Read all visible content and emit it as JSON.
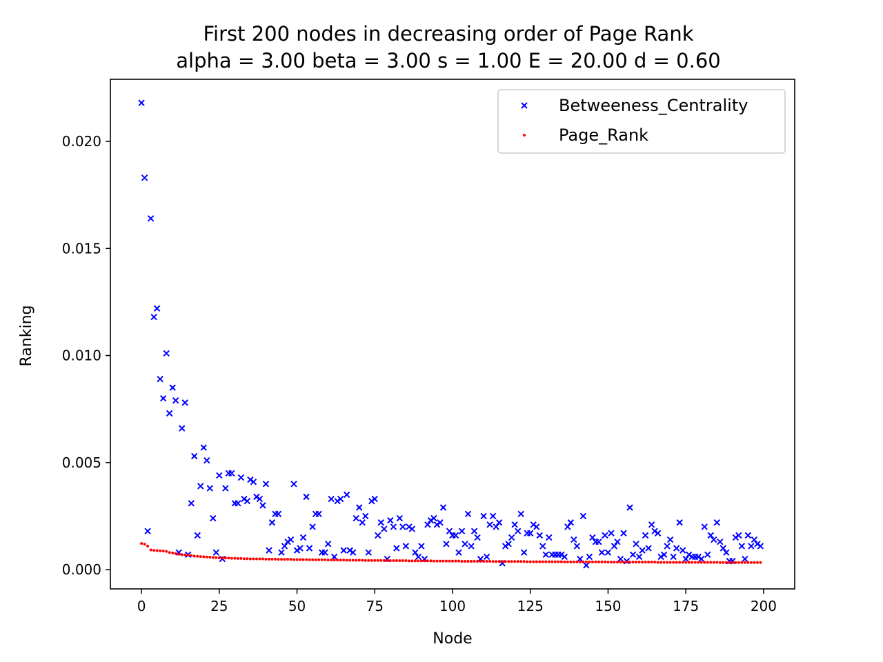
{
  "chart_data": {
    "type": "scatter",
    "title": "First 200 nodes in decreasing order of Page Rank",
    "subtitle": "alpha = 3.00 beta = 3.00 s = 1.00 E = 20.00 d = 0.60",
    "xlabel": "Node",
    "ylabel": "Ranking",
    "xlim": [
      -10,
      210
    ],
    "ylim": [
      -0.0009,
      0.0229
    ],
    "xticks": [
      0,
      25,
      50,
      75,
      100,
      125,
      150,
      175,
      200
    ],
    "xtick_labels": [
      "0",
      "25",
      "50",
      "75",
      "100",
      "125",
      "150",
      "175",
      "200"
    ],
    "yticks": [
      0.0,
      0.005,
      0.01,
      0.015,
      0.02
    ],
    "ytick_labels": [
      "0.000",
      "0.005",
      "0.010",
      "0.015",
      "0.020"
    ],
    "grid": false,
    "legend": "top-right",
    "series": [
      {
        "name": "Betweeness_Centrality",
        "marker": "x",
        "color": "#0000ff",
        "x": [
          0,
          1,
          2,
          3,
          4,
          5,
          6,
          7,
          8,
          9,
          10,
          11,
          12,
          13,
          14,
          15,
          16,
          17,
          18,
          19,
          20,
          21,
          22,
          23,
          24,
          25,
          26,
          27,
          28,
          29,
          30,
          31,
          32,
          33,
          34,
          35,
          36,
          37,
          38,
          39,
          40,
          41,
          42,
          43,
          44,
          45,
          46,
          47,
          48,
          49,
          50,
          51,
          52,
          53,
          54,
          55,
          56,
          57,
          58,
          59,
          60,
          61,
          62,
          63,
          64,
          65,
          66,
          67,
          68,
          69,
          70,
          71,
          72,
          73,
          74,
          75,
          76,
          77,
          78,
          79,
          80,
          81,
          82,
          83,
          84,
          85,
          86,
          87,
          88,
          89,
          90,
          91,
          92,
          93,
          94,
          95,
          96,
          97,
          98,
          99,
          100,
          101,
          102,
          103,
          104,
          105,
          106,
          107,
          108,
          109,
          110,
          111,
          112,
          113,
          114,
          115,
          116,
          117,
          118,
          119,
          120,
          121,
          122,
          123,
          124,
          125,
          126,
          127,
          128,
          129,
          130,
          131,
          132,
          133,
          134,
          135,
          136,
          137,
          138,
          139,
          140,
          141,
          142,
          143,
          144,
          145,
          146,
          147,
          148,
          149,
          150,
          151,
          152,
          153,
          154,
          155,
          156,
          157,
          158,
          159,
          160,
          161,
          162,
          163,
          164,
          165,
          166,
          167,
          168,
          169,
          170,
          171,
          172,
          173,
          174,
          175,
          176,
          177,
          178,
          179,
          180,
          181,
          182,
          183,
          184,
          185,
          186,
          187,
          188,
          189,
          190,
          191,
          192,
          193,
          194,
          195,
          196,
          197,
          198,
          199
        ],
        "y": [
          0.0218,
          0.0183,
          0.0018,
          0.0164,
          0.0118,
          0.0122,
          0.0089,
          0.008,
          0.0101,
          0.0073,
          0.0085,
          0.0079,
          0.0008,
          0.0066,
          0.0078,
          0.0007,
          0.0031,
          0.0053,
          0.0016,
          0.0039,
          0.0057,
          0.0051,
          0.0038,
          0.0024,
          0.0008,
          0.0044,
          0.0005,
          0.0038,
          0.0045,
          0.0045,
          0.0031,
          0.0031,
          0.0043,
          0.0033,
          0.0032,
          0.0042,
          0.0041,
          0.0034,
          0.0033,
          0.003,
          0.004,
          0.0009,
          0.0022,
          0.0026,
          0.0026,
          0.0008,
          0.0011,
          0.0013,
          0.0014,
          0.004,
          0.0009,
          0.001,
          0.0015,
          0.0034,
          0.001,
          0.002,
          0.0026,
          0.0026,
          0.0008,
          0.0008,
          0.0012,
          0.0033,
          0.0006,
          0.0032,
          0.0033,
          0.0009,
          0.0035,
          0.0009,
          0.0008,
          0.0024,
          0.0029,
          0.0022,
          0.0025,
          0.0008,
          0.0032,
          0.0033,
          0.0016,
          0.0022,
          0.0019,
          0.0005,
          0.0023,
          0.002,
          0.001,
          0.0024,
          0.002,
          0.0011,
          0.002,
          0.0019,
          0.0008,
          0.0006,
          0.0011,
          0.0005,
          0.0021,
          0.0023,
          0.0024,
          0.0021,
          0.0022,
          0.0029,
          0.0012,
          0.0018,
          0.0016,
          0.0016,
          0.0008,
          0.0018,
          0.0012,
          0.0026,
          0.0011,
          0.0018,
          0.0015,
          0.0005,
          0.0025,
          0.0006,
          0.0021,
          0.0025,
          0.002,
          0.0022,
          0.0003,
          0.0011,
          0.0012,
          0.0015,
          0.0021,
          0.0018,
          0.0026,
          0.0008,
          0.0017,
          0.0017,
          0.0021,
          0.002,
          0.0016,
          0.0011,
          0.0007,
          0.0015,
          0.0007,
          0.0007,
          0.0007,
          0.0007,
          0.0006,
          0.002,
          0.0022,
          0.0014,
          0.0011,
          0.0005,
          0.0025,
          0.0002,
          0.0006,
          0.0015,
          0.0013,
          0.0013,
          0.0008,
          0.0016,
          0.0008,
          0.0017,
          0.0011,
          0.0013,
          0.0005,
          0.0017,
          0.0004,
          0.0029,
          0.0007,
          0.0012,
          0.0006,
          0.0009,
          0.0016,
          0.001,
          0.0021,
          0.0018,
          0.0017,
          0.0006,
          0.0007,
          0.0011,
          0.0014,
          0.0006,
          0.001,
          0.0022,
          0.0009,
          0.0005,
          0.0007,
          0.0006,
          0.0006,
          0.0006,
          0.0005,
          0.002,
          0.0007,
          0.0016,
          0.0014,
          0.0022,
          0.0013,
          0.001,
          0.0008,
          0.0004,
          0.0004,
          0.0015,
          0.0016,
          0.0011,
          0.0005,
          0.0016,
          0.0011,
          0.0014,
          0.0012,
          0.0011
        ]
      },
      {
        "name": "Page_Rank",
        "marker": "dot",
        "color": "#ff0000",
        "x": [
          0,
          1,
          2,
          3,
          4,
          5,
          6,
          7,
          8,
          9,
          10,
          11,
          12,
          13,
          14,
          15,
          16,
          17,
          18,
          19,
          20,
          21,
          22,
          23,
          24,
          25,
          26,
          27,
          28,
          29,
          30,
          31,
          32,
          33,
          34,
          35,
          36,
          37,
          38,
          39,
          40,
          41,
          42,
          43,
          44,
          45,
          46,
          47,
          48,
          49,
          50,
          51,
          52,
          53,
          54,
          55,
          56,
          57,
          58,
          59,
          60,
          61,
          62,
          63,
          64,
          65,
          66,
          67,
          68,
          69,
          70,
          71,
          72,
          73,
          74,
          75,
          76,
          77,
          78,
          79,
          80,
          81,
          82,
          83,
          84,
          85,
          86,
          87,
          88,
          89,
          90,
          91,
          92,
          93,
          94,
          95,
          96,
          97,
          98,
          99,
          100,
          101,
          102,
          103,
          104,
          105,
          106,
          107,
          108,
          109,
          110,
          111,
          112,
          113,
          114,
          115,
          116,
          117,
          118,
          119,
          120,
          121,
          122,
          123,
          124,
          125,
          126,
          127,
          128,
          129,
          130,
          131,
          132,
          133,
          134,
          135,
          136,
          137,
          138,
          139,
          140,
          141,
          142,
          143,
          144,
          145,
          146,
          147,
          148,
          149,
          150,
          151,
          152,
          153,
          154,
          155,
          156,
          157,
          158,
          159,
          160,
          161,
          162,
          163,
          164,
          165,
          166,
          167,
          168,
          169,
          170,
          171,
          172,
          173,
          174,
          175,
          176,
          177,
          178,
          179,
          180,
          181,
          182,
          183,
          184,
          185,
          186,
          187,
          188,
          189,
          190,
          191,
          192,
          193,
          194,
          195,
          196,
          197,
          198,
          199
        ],
        "y": [
          0.00122,
          0.00119,
          0.0011,
          0.00092,
          0.0009,
          0.00089,
          0.00088,
          0.00087,
          0.00085,
          0.0008,
          0.00078,
          0.00075,
          0.00072,
          0.0007,
          0.00069,
          0.00068,
          0.00066,
          0.00063,
          0.00062,
          0.00061,
          0.0006,
          0.00059,
          0.00058,
          0.00057,
          0.00056,
          0.00055,
          0.00055,
          0.00054,
          0.00054,
          0.00053,
          0.00053,
          0.00052,
          0.00052,
          0.00051,
          0.00051,
          0.0005,
          0.0005,
          0.0005,
          0.0005,
          0.0005,
          0.00049,
          0.00049,
          0.00049,
          0.00049,
          0.00048,
          0.00048,
          0.00048,
          0.00048,
          0.00048,
          0.00047,
          0.00047,
          0.00047,
          0.00047,
          0.00047,
          0.00046,
          0.00046,
          0.00046,
          0.00046,
          0.00046,
          0.00046,
          0.00045,
          0.00045,
          0.00045,
          0.00045,
          0.00045,
          0.00045,
          0.00044,
          0.00044,
          0.00044,
          0.00044,
          0.00044,
          0.00044,
          0.00043,
          0.00043,
          0.00043,
          0.00043,
          0.00043,
          0.00043,
          0.00043,
          0.00042,
          0.00042,
          0.00042,
          0.00042,
          0.00042,
          0.00042,
          0.00042,
          0.00041,
          0.00041,
          0.00041,
          0.00041,
          0.00041,
          0.00041,
          0.00041,
          0.00041,
          0.0004,
          0.0004,
          0.0004,
          0.0004,
          0.0004,
          0.0004,
          0.0004,
          0.0004,
          0.0004,
          0.00039,
          0.00039,
          0.00039,
          0.00039,
          0.00039,
          0.00039,
          0.00039,
          0.00039,
          0.00039,
          0.00039,
          0.00038,
          0.00038,
          0.00038,
          0.00038,
          0.00038,
          0.00038,
          0.00038,
          0.00038,
          0.00038,
          0.00038,
          0.00038,
          0.00037,
          0.00037,
          0.00037,
          0.00037,
          0.00037,
          0.00037,
          0.00037,
          0.00037,
          0.00037,
          0.00037,
          0.00037,
          0.00037,
          0.00036,
          0.00036,
          0.00036,
          0.00036,
          0.00036,
          0.00036,
          0.00036,
          0.00036,
          0.00036,
          0.00036,
          0.00036,
          0.00036,
          0.00036,
          0.00036,
          0.00035,
          0.00035,
          0.00035,
          0.00035,
          0.00035,
          0.00035,
          0.00035,
          0.00035,
          0.00035,
          0.00035,
          0.00035,
          0.00035,
          0.00035,
          0.00035,
          0.00035,
          0.00035,
          0.00034,
          0.00034,
          0.00034,
          0.00034,
          0.00034,
          0.00034,
          0.00034,
          0.00034,
          0.00034,
          0.00034,
          0.00034,
          0.00034,
          0.00034,
          0.00034,
          0.00034,
          0.00034,
          0.00034,
          0.00034,
          0.00034,
          0.00034,
          0.00033,
          0.00033,
          0.00033,
          0.00033,
          0.00033,
          0.00033,
          0.00033,
          0.00033,
          0.00033,
          0.00033,
          0.00033,
          0.00033,
          0.00033,
          0.00033
        ]
      }
    ]
  }
}
